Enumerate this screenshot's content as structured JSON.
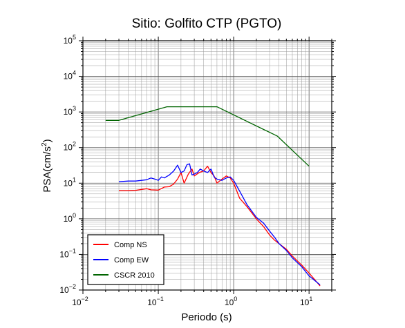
{
  "chart_data": {
    "type": "line",
    "title": "Sitio: Golfito CTP (PGTO)",
    "xlabel": "Periodo (s)",
    "ylabel": "PSA(cm/s²)",
    "ylabel_parts": {
      "base": "PSA(cm/s",
      "sup": "2",
      "close": ")"
    },
    "xscale": "log",
    "yscale": "log",
    "xlim": [
      0.01,
      20
    ],
    "ylim": [
      0.01,
      100000
    ],
    "grid": true,
    "legend_position": "bottom-left",
    "x_ticks": [
      {
        "base": "10",
        "exp": "−2",
        "value": 0.01
      },
      {
        "base": "10",
        "exp": "−1",
        "value": 0.1
      },
      {
        "base": "10",
        "exp": "0",
        "value": 1
      },
      {
        "base": "10",
        "exp": "1",
        "value": 10
      }
    ],
    "y_ticks": [
      {
        "base": "10",
        "exp": "−2",
        "value": 0.01
      },
      {
        "base": "10",
        "exp": "−1",
        "value": 0.1
      },
      {
        "base": "10",
        "exp": "0",
        "value": 1
      },
      {
        "base": "10",
        "exp": "1",
        "value": 10
      },
      {
        "base": "10",
        "exp": "2",
        "value": 100
      },
      {
        "base": "10",
        "exp": "3",
        "value": 1000
      },
      {
        "base": "10",
        "exp": "4",
        "value": 10000
      },
      {
        "base": "10",
        "exp": "5",
        "value": 100000
      }
    ],
    "series": [
      {
        "name": "Comp NS",
        "color": "#ff0000",
        "x": [
          0.03,
          0.04,
          0.05,
          0.07,
          0.08,
          0.1,
          0.12,
          0.14,
          0.16,
          0.18,
          0.2,
          0.22,
          0.25,
          0.28,
          0.3,
          0.35,
          0.4,
          0.45,
          0.5,
          0.55,
          0.6,
          0.7,
          0.8,
          0.9,
          1.0,
          1.2,
          1.5,
          2.0,
          2.5,
          3.0,
          3.5,
          4.0,
          5.0,
          6.0,
          8.0,
          10.0,
          14.0
        ],
        "y": [
          6.2,
          6.2,
          6.3,
          7.0,
          6.5,
          6.4,
          7.8,
          8.0,
          9.5,
          13.0,
          20.0,
          10.0,
          18.0,
          25.0,
          16.0,
          20.0,
          22.0,
          30.0,
          20.0,
          16.0,
          10.0,
          13.0,
          16.0,
          14.0,
          10.0,
          3.8,
          2.2,
          1.0,
          0.6,
          0.35,
          0.25,
          0.2,
          0.14,
          0.09,
          0.05,
          0.03,
          0.013
        ]
      },
      {
        "name": "Comp EW",
        "color": "#0000ff",
        "x": [
          0.03,
          0.04,
          0.05,
          0.06,
          0.07,
          0.08,
          0.09,
          0.1,
          0.11,
          0.12,
          0.14,
          0.16,
          0.18,
          0.2,
          0.22,
          0.24,
          0.26,
          0.28,
          0.3,
          0.33,
          0.36,
          0.4,
          0.45,
          0.5,
          0.55,
          0.6,
          0.7,
          0.8,
          0.9,
          1.0,
          1.2,
          1.5,
          2.0,
          2.5,
          3.0,
          3.5,
          4.0,
          5.0,
          6.0,
          8.0,
          10.0,
          14.0
        ],
        "y": [
          11.0,
          11.5,
          11.5,
          12.0,
          12.5,
          14.0,
          13.0,
          12.0,
          15.0,
          14.0,
          17.0,
          22.0,
          32.0,
          20.0,
          22.0,
          33.0,
          35.0,
          17.0,
          18.0,
          20.0,
          25.0,
          22.0,
          20.0,
          25.0,
          15.0,
          13.0,
          12.0,
          14.0,
          15.0,
          12.0,
          6.0,
          2.5,
          1.1,
          0.75,
          0.45,
          0.3,
          0.2,
          0.13,
          0.08,
          0.045,
          0.025,
          0.014
        ]
      },
      {
        "name": "CSCR 2010",
        "color": "#006400",
        "x": [
          0.02,
          0.03,
          0.13,
          0.6,
          3.8,
          10.0
        ],
        "y": [
          580,
          580,
          1400,
          1400,
          210,
          30
        ]
      }
    ]
  }
}
